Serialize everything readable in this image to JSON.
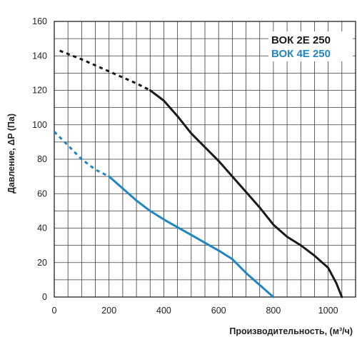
{
  "chart_data": {
    "type": "line",
    "xlabel": "Производительность, (м³/ч)",
    "ylabel": "Давление, ΔP (Па)",
    "xlim": [
      0,
      1100
    ],
    "ylim": [
      0,
      160
    ],
    "x_ticks": [
      0,
      200,
      400,
      600,
      800,
      1000
    ],
    "y_ticks": [
      0,
      20,
      40,
      60,
      80,
      100,
      120,
      140,
      160
    ],
    "grid": true,
    "legend_position": "top-right",
    "series": [
      {
        "name": "ВОК 2E 250",
        "color": "#1a1a1a",
        "dashed_points": [
          [
            20,
            143
          ],
          [
            100,
            138
          ],
          [
            200,
            131
          ],
          [
            300,
            124
          ],
          [
            350,
            120
          ]
        ],
        "solid_points": [
          [
            350,
            120
          ],
          [
            400,
            114
          ],
          [
            450,
            105
          ],
          [
            500,
            95
          ],
          [
            600,
            79
          ],
          [
            700,
            61
          ],
          [
            750,
            52
          ],
          [
            800,
            42
          ],
          [
            850,
            35
          ],
          [
            900,
            30
          ],
          [
            950,
            24
          ],
          [
            1000,
            17
          ],
          [
            1030,
            8
          ],
          [
            1050,
            0
          ]
        ]
      },
      {
        "name": "ВОК 4E 250",
        "color": "#1f86c4",
        "dashed_points": [
          [
            0,
            96
          ],
          [
            50,
            88
          ],
          [
            100,
            80
          ],
          [
            150,
            74
          ],
          [
            200,
            70
          ]
        ],
        "solid_points": [
          [
            200,
            70
          ],
          [
            250,
            63
          ],
          [
            300,
            56
          ],
          [
            350,
            50
          ],
          [
            400,
            45
          ],
          [
            500,
            36
          ],
          [
            600,
            27
          ],
          [
            650,
            22
          ],
          [
            700,
            14
          ],
          [
            750,
            7
          ],
          [
            800,
            0
          ]
        ]
      }
    ]
  }
}
